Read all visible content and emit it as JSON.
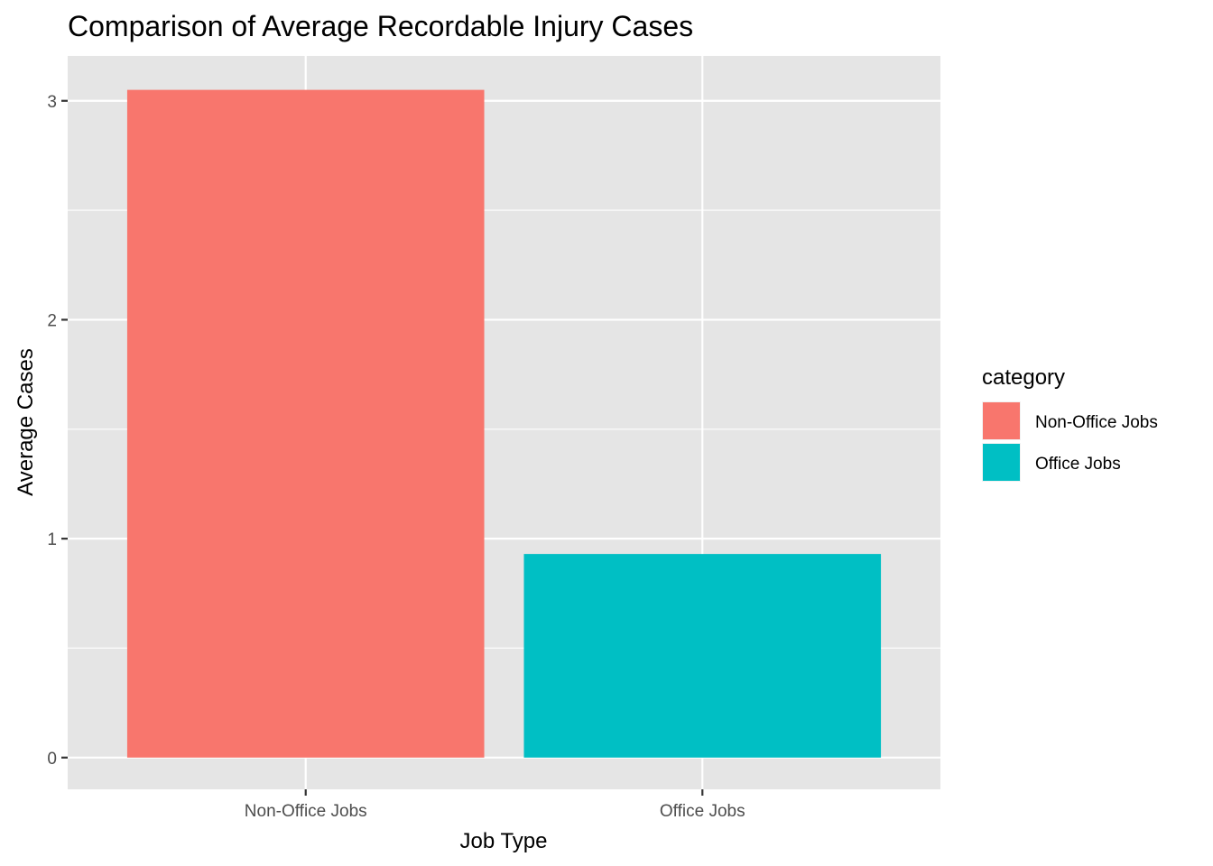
{
  "chart_data": {
    "type": "bar",
    "title": "Comparison of Average Recordable Injury Cases",
    "xlabel": "Job Type",
    "ylabel": "Average Cases",
    "categories": [
      "Non-Office Jobs",
      "Office Jobs"
    ],
    "values": [
      3.05,
      0.93
    ],
    "colors": [
      "#F8766D",
      "#00BFC4"
    ],
    "ylim": [
      -0.145,
      3.205
    ],
    "yticks": [
      0,
      1,
      2,
      3
    ],
    "grid": true,
    "legend": {
      "title": "category",
      "position": "right",
      "entries": [
        "Non-Office Jobs",
        "Office Jobs"
      ]
    },
    "panel_background": "#E5E5E5",
    "gridline_color": "#FFFFFF"
  }
}
